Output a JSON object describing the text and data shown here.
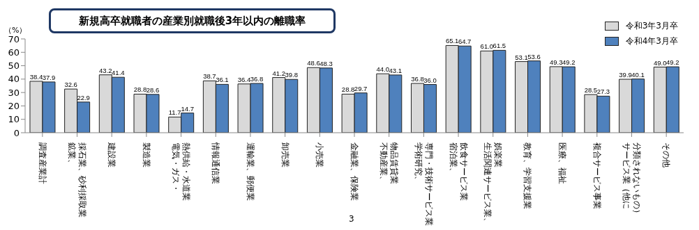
{
  "chart_data": {
    "type": "bar",
    "title": "新規高卒就職者の産業別就職後3年以内の離職率",
    "ylabel": "（%）",
    "categories": [
      "調査産業計",
      "鉱業、採石業、砂利採取業",
      "建設業",
      "製造業",
      "電気・ガス・熱供給・水道業",
      "情報通信業",
      "運輸業、郵便業",
      "卸売業",
      "小売業",
      "金融業、保険業",
      "不動産業、物品賃貸業",
      "学術研究、専門・技術サービス業",
      "宿泊業、飲食サービス業",
      "生活関連サービス業、娯楽業",
      "教育、学習支援業",
      "医療、福祉",
      "複合サービス事業",
      "サービス業（他に分類されないもの）",
      "その他"
    ],
    "series": [
      {
        "name": "令和3年3月卒",
        "color": "#d9d9d9",
        "values": [
          38.4,
          32.6,
          43.2,
          28.8,
          11.7,
          38.7,
          36.4,
          41.2,
          48.6,
          28.8,
          44.0,
          36.8,
          65.1,
          61.0,
          53.1,
          49.3,
          28.5,
          39.9,
          49.0
        ],
        "value_labels": [
          "38.4",
          "32.6",
          "43.2",
          "28.8",
          "11.7",
          "38.7",
          "36.4",
          "41.2",
          "48.6",
          "28.8",
          "44.0",
          "36.8",
          "65.1",
          "61.0",
          "53.1",
          "49.3",
          "28.5",
          "39.9",
          "49.0"
        ]
      },
      {
        "name": "令和4年3月卒",
        "color": "#4f81bd",
        "values": [
          37.9,
          22.9,
          41.4,
          28.6,
          14.7,
          36.1,
          36.8,
          39.8,
          48.3,
          29.7,
          43.1,
          36.0,
          64.7,
          61.5,
          53.6,
          49.2,
          27.3,
          40.1,
          49.2
        ],
        "value_labels": [
          "37.9",
          "22.9",
          "41.4",
          "28.6",
          "14.7",
          "36.1",
          "36.8",
          "39.8",
          "48.3",
          "29.7",
          "43.1",
          "36.0",
          "64.7",
          "61.5",
          "53.6",
          "49.2",
          "27.3",
          "40.1",
          "49.2"
        ]
      }
    ],
    "ylim": [
      0,
      70
    ],
    "yticks": [
      0,
      10,
      20,
      30,
      40,
      50,
      60,
      70
    ],
    "grid": false,
    "legend": "top right",
    "annotations": [
      "3"
    ]
  }
}
